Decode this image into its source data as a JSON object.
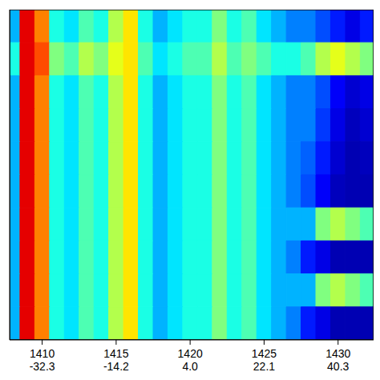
{
  "chart_data": {
    "type": "heatmap",
    "x_edges": [
      1407.5,
      1408.5,
      1409.5,
      1410.5,
      1411.5,
      1412.5,
      1413.5,
      1414.5,
      1415.5,
      1416.5,
      1417.5,
      1418.5,
      1419.5,
      1420.5,
      1421.5,
      1422.5,
      1423.5,
      1424.5,
      1425.5,
      1426.5,
      1427.5,
      1428.5,
      1429.5,
      1430.5,
      1431.5,
      1432.5
    ],
    "y_edges": [
      10,
      9,
      8,
      7,
      6,
      5,
      4,
      3,
      2,
      1,
      0
    ],
    "cells": [
      [
        0.3,
        0.9,
        0.75,
        0.4,
        0.35,
        0.45,
        0.4,
        0.55,
        0.65,
        0.4,
        0.3,
        0.35,
        0.4,
        0.4,
        0.5,
        0.4,
        0.45,
        0.35,
        0.3,
        0.25,
        0.25,
        0.2,
        0.15,
        0.1,
        0.15
      ],
      [
        0.4,
        0.9,
        0.8,
        0.5,
        0.45,
        0.55,
        0.5,
        0.6,
        0.65,
        0.45,
        0.35,
        0.4,
        0.45,
        0.45,
        0.55,
        0.45,
        0.5,
        0.45,
        0.4,
        0.4,
        0.45,
        0.55,
        0.6,
        0.55,
        0.5
      ],
      [
        0.3,
        0.9,
        0.75,
        0.4,
        0.35,
        0.45,
        0.4,
        0.55,
        0.65,
        0.4,
        0.3,
        0.35,
        0.4,
        0.4,
        0.5,
        0.4,
        0.45,
        0.35,
        0.3,
        0.25,
        0.25,
        0.2,
        0.12,
        0.08,
        0.1
      ],
      [
        0.3,
        0.9,
        0.75,
        0.4,
        0.35,
        0.45,
        0.4,
        0.55,
        0.65,
        0.4,
        0.3,
        0.35,
        0.4,
        0.4,
        0.5,
        0.4,
        0.45,
        0.35,
        0.3,
        0.25,
        0.25,
        0.18,
        0.1,
        0.06,
        0.08
      ],
      [
        0.3,
        0.9,
        0.75,
        0.4,
        0.35,
        0.45,
        0.4,
        0.55,
        0.65,
        0.4,
        0.3,
        0.35,
        0.4,
        0.4,
        0.5,
        0.4,
        0.45,
        0.35,
        0.3,
        0.25,
        0.22,
        0.15,
        0.08,
        0.05,
        0.06
      ],
      [
        0.3,
        0.9,
        0.75,
        0.4,
        0.35,
        0.45,
        0.4,
        0.55,
        0.65,
        0.4,
        0.3,
        0.35,
        0.4,
        0.4,
        0.5,
        0.4,
        0.45,
        0.35,
        0.3,
        0.25,
        0.2,
        0.12,
        0.06,
        0.05,
        0.05
      ],
      [
        0.3,
        0.9,
        0.75,
        0.4,
        0.35,
        0.45,
        0.4,
        0.55,
        0.65,
        0.4,
        0.3,
        0.35,
        0.4,
        0.4,
        0.5,
        0.4,
        0.45,
        0.35,
        0.3,
        0.3,
        0.3,
        0.5,
        0.55,
        0.5,
        0.45
      ],
      [
        0.3,
        0.9,
        0.75,
        0.4,
        0.35,
        0.45,
        0.4,
        0.55,
        0.65,
        0.4,
        0.3,
        0.35,
        0.4,
        0.4,
        0.5,
        0.4,
        0.45,
        0.35,
        0.3,
        0.25,
        0.15,
        0.1,
        0.05,
        0.05,
        0.05
      ],
      [
        0.3,
        0.9,
        0.75,
        0.4,
        0.35,
        0.45,
        0.4,
        0.55,
        0.65,
        0.4,
        0.3,
        0.35,
        0.4,
        0.4,
        0.5,
        0.4,
        0.45,
        0.35,
        0.3,
        0.3,
        0.3,
        0.5,
        0.55,
        0.5,
        0.45
      ],
      [
        0.3,
        0.9,
        0.75,
        0.4,
        0.35,
        0.45,
        0.4,
        0.55,
        0.65,
        0.4,
        0.3,
        0.35,
        0.4,
        0.4,
        0.5,
        0.4,
        0.45,
        0.35,
        0.3,
        0.25,
        0.15,
        0.1,
        0.05,
        0.05,
        0.05
      ]
    ],
    "color_range": [
      0,
      1
    ],
    "xlim": [
      1407.8,
      1432.4
    ],
    "xticks": [
      1410,
      1415,
      1420,
      1425,
      1430
    ],
    "x2ticks": [
      {
        "value": 1410,
        "label": "-32.3"
      },
      {
        "value": 1415,
        "label": "-14.2"
      },
      {
        "value": 1420,
        "label": "4.0"
      },
      {
        "value": 1425,
        "label": "22.1"
      },
      {
        "value": 1430,
        "label": "40.3"
      }
    ],
    "ylim": [
      0,
      10
    ],
    "tick_labels": "x"
  }
}
